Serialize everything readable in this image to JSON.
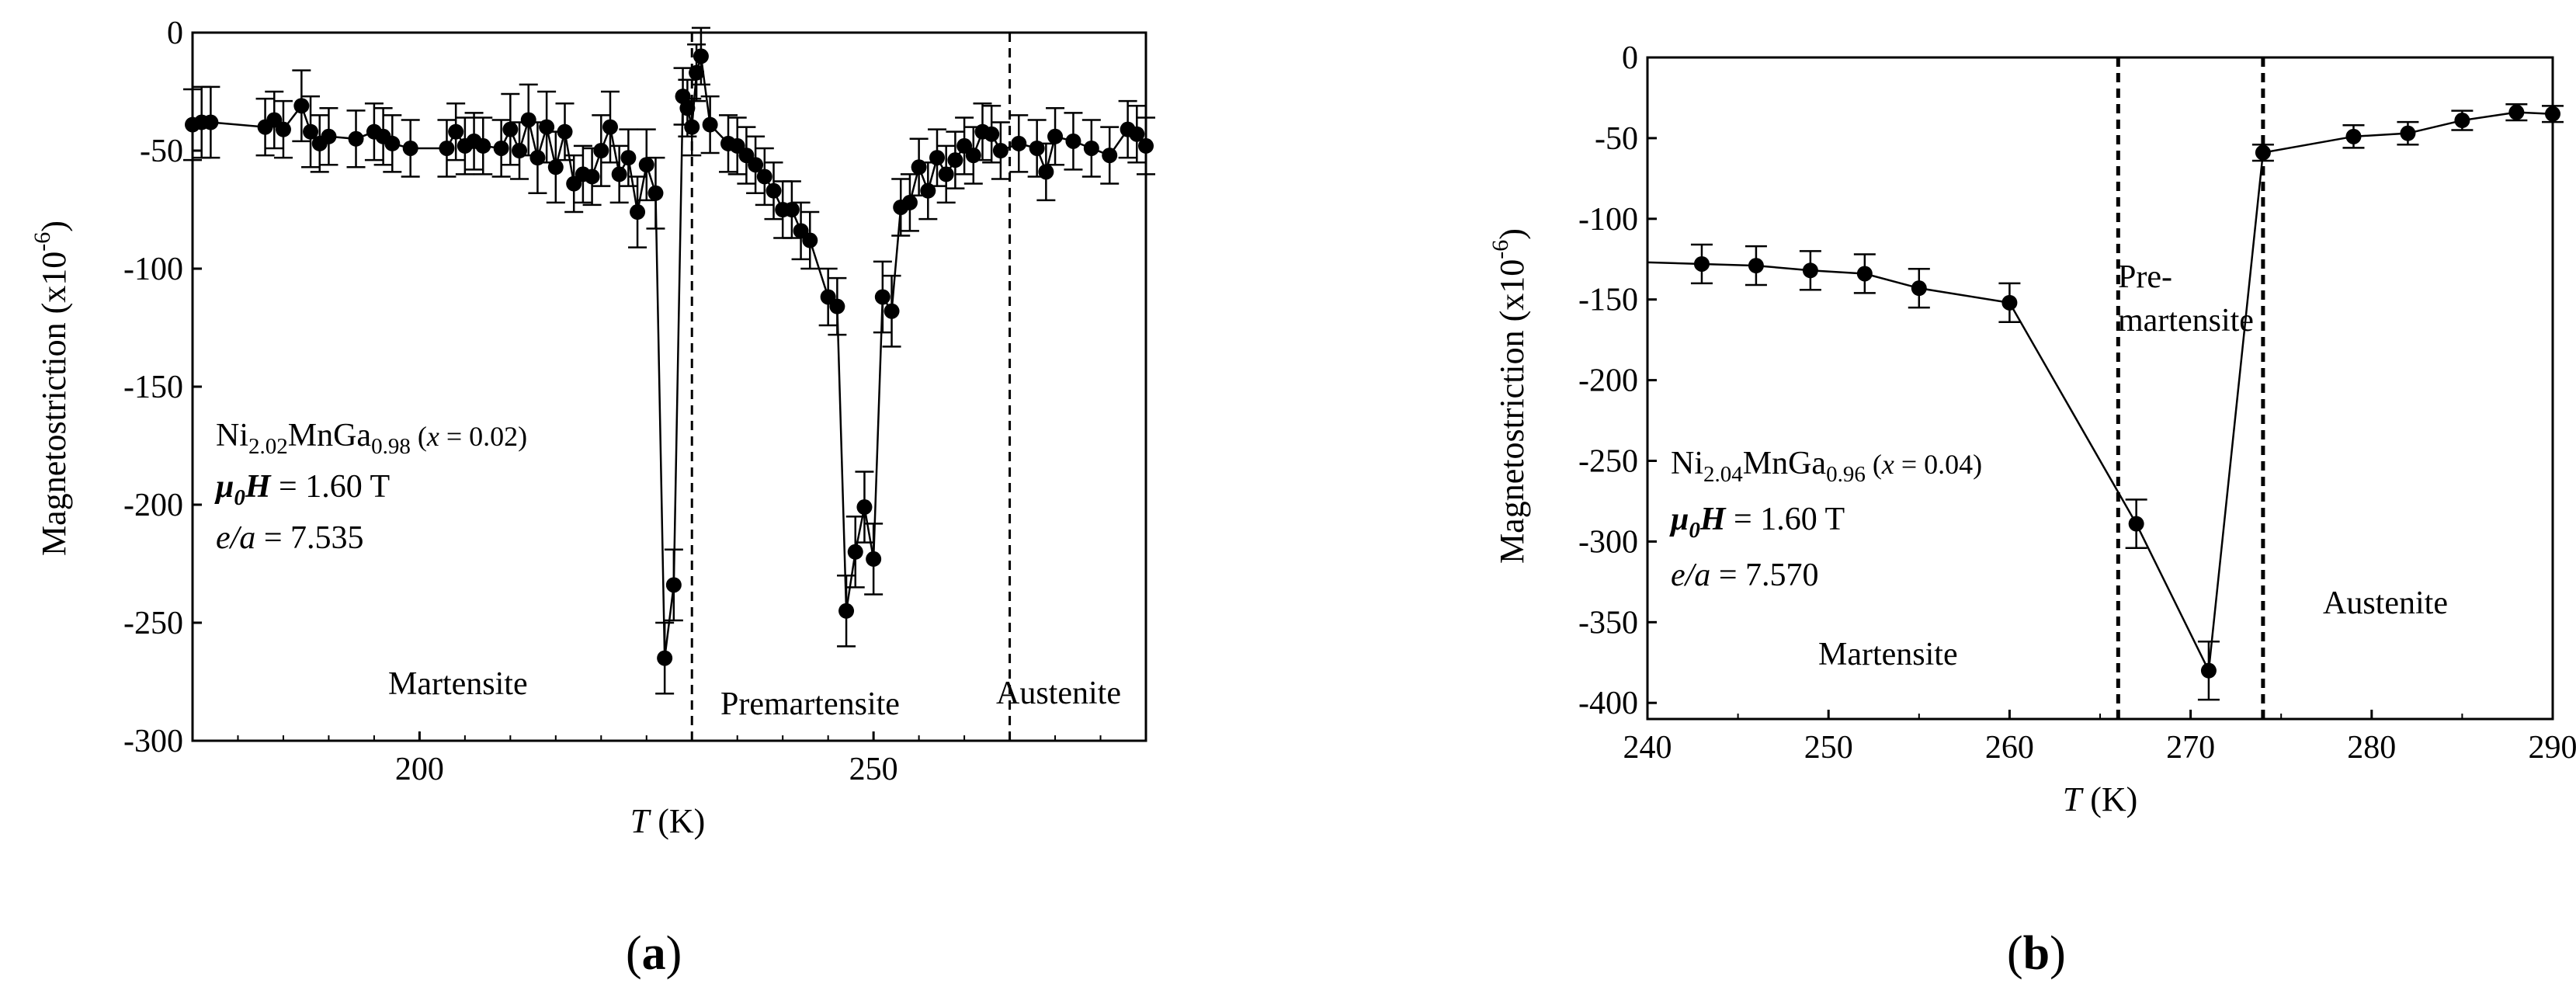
{
  "chart_data": [
    {
      "type": "line",
      "panel_label": "a",
      "ylabel": "Magnetostriction (x10",
      "ylabel_exp": "-6",
      "ylabel_close": ")",
      "xlabel_var": "T",
      "xlabel_unit": " (K)",
      "xlim": [
        175,
        280
      ],
      "ylim": [
        -300,
        0
      ],
      "xticks": [
        200,
        250
      ],
      "yticks": [
        0,
        -50,
        -100,
        -150,
        -200,
        -250,
        -300
      ],
      "vlines": [
        230,
        265
      ],
      "composition": {
        "base1": "Ni",
        "sub1": "2.02",
        "base2": "MnGa",
        "sub2": "0.98",
        "note_open": " (",
        "note_var": "x",
        "note_rest": " = 0.02)"
      },
      "field": {
        "mu": "μ",
        "sub": "0",
        "H": "H",
        "rest": " = 1.60 T"
      },
      "ea": {
        "var": "e/a",
        "rest": " = 7.535"
      },
      "regions": [
        "Martensite",
        "Premartensite",
        "Austenite"
      ],
      "series": [
        {
          "name": "Magnetostriction",
          "x": [
            175,
            176,
            177,
            183,
            184,
            185,
            187,
            188,
            189,
            190,
            193,
            195,
            196,
            197,
            199,
            203,
            204,
            205,
            206,
            207,
            209,
            210,
            211,
            212,
            213,
            214,
            215,
            216,
            217,
            218,
            219,
            220,
            221,
            222,
            223,
            224,
            225,
            226,
            227,
            228,
            229,
            229.5,
            230,
            230.5,
            231,
            232,
            234,
            235,
            236,
            237,
            238,
            239,
            240,
            241,
            242,
            243,
            245,
            246,
            247,
            248,
            249,
            250,
            251,
            252,
            253,
            254,
            255,
            256,
            257,
            258,
            259,
            260,
            261,
            262,
            263,
            264,
            266,
            268,
            269,
            270,
            272,
            274,
            276,
            278,
            279,
            280
          ],
          "y": [
            -39,
            -38,
            -38,
            -40,
            -37,
            -41,
            -31,
            -42,
            -47,
            -44,
            -45,
            -42,
            -44,
            -47,
            -49,
            -49,
            -42,
            -48,
            -46,
            -48,
            -49,
            -41,
            -50,
            -37,
            -53,
            -40,
            -57,
            -42,
            -64,
            -60,
            -61,
            -50,
            -40,
            -60,
            -53,
            -76,
            -56,
            -68,
            -265,
            -234,
            -27,
            -32,
            -40,
            -17,
            -10,
            -39,
            -47,
            -48,
            -52,
            -56,
            -61,
            -67,
            -75,
            -75,
            -84,
            -88,
            -112,
            -116,
            -245,
            -220,
            -201,
            -223,
            -112,
            -118,
            -74,
            -72,
            -57,
            -67,
            -53,
            -60,
            -54,
            -48,
            -52,
            -42,
            -43,
            -50,
            -47,
            -49,
            -59,
            -44,
            -46,
            -49,
            -52,
            -41,
            -43,
            -48
          ],
          "err": [
            15,
            15,
            15,
            12,
            12,
            12,
            15,
            15,
            12,
            12,
            12,
            12,
            12,
            12,
            12,
            12,
            12,
            12,
            12,
            12,
            12,
            15,
            12,
            15,
            15,
            15,
            15,
            12,
            12,
            12,
            12,
            15,
            15,
            12,
            12,
            15,
            15,
            15,
            15,
            15,
            12,
            12,
            12,
            12,
            12,
            12,
            12,
            12,
            12,
            12,
            12,
            12,
            12,
            12,
            12,
            12,
            12,
            12,
            15,
            15,
            15,
            15,
            15,
            15,
            12,
            12,
            12,
            12,
            12,
            12,
            12,
            12,
            12,
            12,
            12,
            12,
            12,
            12,
            12,
            12,
            12,
            12,
            12,
            12,
            12,
            12
          ]
        }
      ]
    },
    {
      "type": "line",
      "panel_label": "b",
      "ylabel": "Magnetostriction (x10",
      "ylabel_exp": "-6",
      "ylabel_close": ")",
      "xlabel_var": "T",
      "xlabel_unit": " (K)",
      "xlim": [
        240,
        290
      ],
      "ylim": [
        -410,
        0
      ],
      "xticks": [
        240,
        250,
        260,
        270,
        280,
        290
      ],
      "yticks": [
        0,
        -50,
        -100,
        -150,
        -200,
        -250,
        -300,
        -350,
        -400
      ],
      "vlines": [
        266,
        274
      ],
      "composition": {
        "base1": "Ni",
        "sub1": "2.04",
        "base2": "MnGa",
        "sub2": "0.96",
        "note_open": " (",
        "note_var": "x",
        "note_rest": " = 0.04)"
      },
      "field": {
        "mu": "μ",
        "sub": "0",
        "H": "H",
        "rest": " = 1.60 T"
      },
      "ea": {
        "var": "e/a",
        "rest": " = 7.570"
      },
      "regions": [
        "Martensite",
        "Pre-",
        "martensite",
        "Austenite"
      ],
      "series": [
        {
          "name": "Magnetostriction",
          "x": [
            240,
            243,
            246,
            249,
            252,
            255,
            260,
            267,
            271,
            274,
            279,
            282,
            285,
            288,
            290
          ],
          "y": [
            -127,
            -128,
            -129,
            -132,
            -134,
            -143,
            -152,
            -289,
            -380,
            -59,
            -49,
            -47,
            -39,
            -34,
            -35
          ],
          "err": [
            0,
            12,
            12,
            12,
            12,
            12,
            12,
            15,
            18,
            5,
            7,
            7,
            6,
            5,
            5
          ]
        }
      ]
    }
  ]
}
